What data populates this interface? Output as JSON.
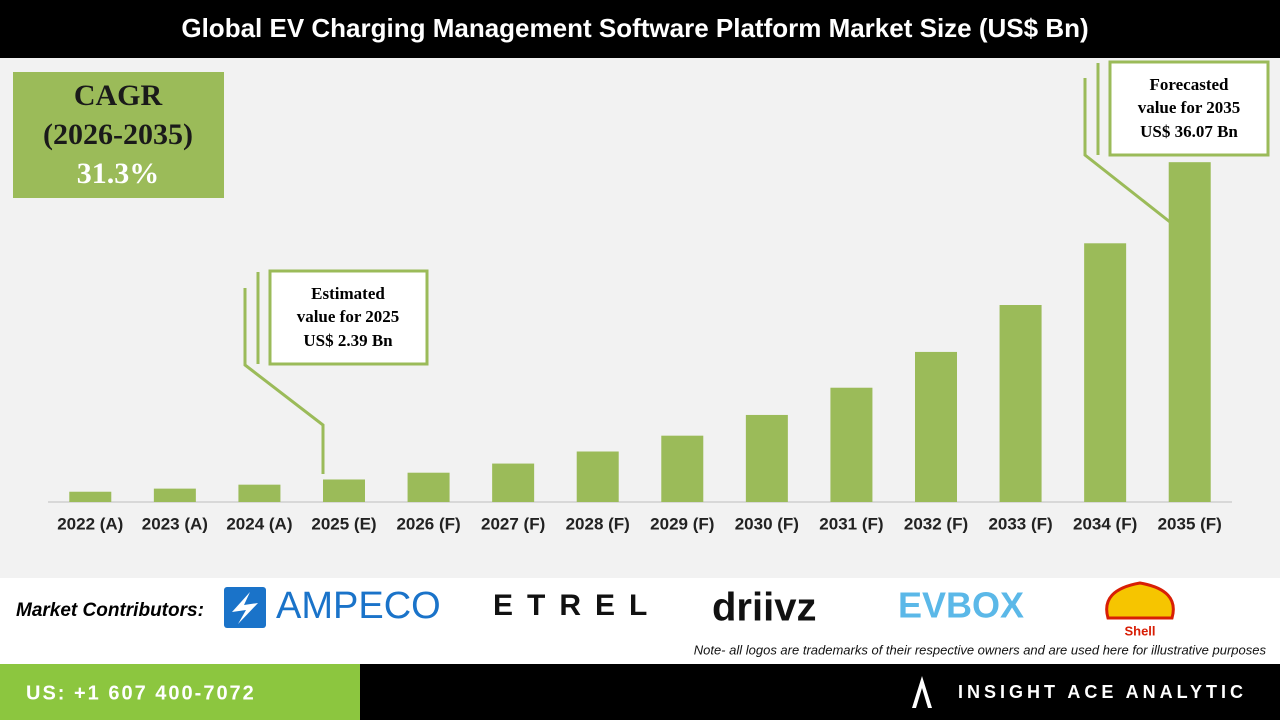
{
  "chart_data": {
    "type": "bar",
    "title": "Global EV Charging Management Software Platform Market Size (US$ Bn)",
    "categories": [
      "2022 (A)",
      "2023 (A)",
      "2024 (A)",
      "2025 (E)",
      "2026 (F)",
      "2027 (F)",
      "2028 (F)",
      "2029 (F)",
      "2030 (F)",
      "2031 (F)",
      "2032 (F)",
      "2033 (F)",
      "2034 (F)",
      "2035 (F)"
    ],
    "values": [
      1.09,
      1.42,
      1.84,
      2.39,
      3.11,
      4.08,
      5.36,
      7.04,
      9.24,
      12.13,
      15.93,
      20.91,
      27.46,
      36.07
    ],
    "color": "#9bbb59",
    "ylim": [
      0,
      38
    ],
    "cagr": [
      "CAGR",
      "(2026-2035)",
      "31.3%"
    ],
    "annotations": [
      {
        "lines": [
          "Estimated",
          "value for 2025",
          "US$ 2.39 Bn"
        ]
      },
      {
        "lines": [
          "Forecasted",
          "value for 2035",
          "US$ 36.07 Bn"
        ]
      }
    ]
  },
  "contributors": {
    "label": "Market Contributors:",
    "logos": [
      "AMPECO",
      "ETREL",
      "driivz",
      "EVBOX",
      "Shell"
    ],
    "note": "Note- all logos are trademarks of their respective owners and are used here for illustrative purposes"
  },
  "footer": {
    "phone": "US: +1 607 400-7072",
    "brand": "INSIGHT ACE ANALYTIC"
  }
}
